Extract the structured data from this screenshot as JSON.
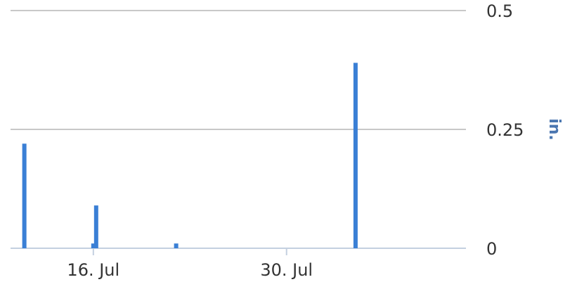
{
  "chart_data": {
    "type": "bar",
    "ylabel": "in.",
    "ylim": [
      0,
      0.5
    ],
    "y_ticks": [
      {
        "value": 0.5,
        "label": "0.5"
      },
      {
        "value": 0.25,
        "label": "0.25"
      },
      {
        "value": 0,
        "label": "0"
      }
    ],
    "x_ticks": [
      {
        "date": "2023-07-16",
        "label": "16. Jul"
      },
      {
        "date": "2023-07-30",
        "label": "30. Jul"
      }
    ],
    "x_range": [
      "2023-07-10",
      "2023-08-12"
    ],
    "grid": true,
    "series": [
      {
        "points": [
          {
            "date": "2023-07-11",
            "value": 0.22
          },
          {
            "date": "2023-07-16",
            "value": 0.01
          },
          {
            "date": "2023-07-16",
            "value": 0.09
          },
          {
            "date": "2023-07-22",
            "value": 0.01
          },
          {
            "date": "2023-08-04",
            "value": 0.39
          }
        ]
      }
    ],
    "colors": {
      "bar": "#3a7fd5",
      "grid": "#c8c8c8",
      "axis": "#c4d0e0",
      "y_title": "#4a76b0"
    }
  }
}
